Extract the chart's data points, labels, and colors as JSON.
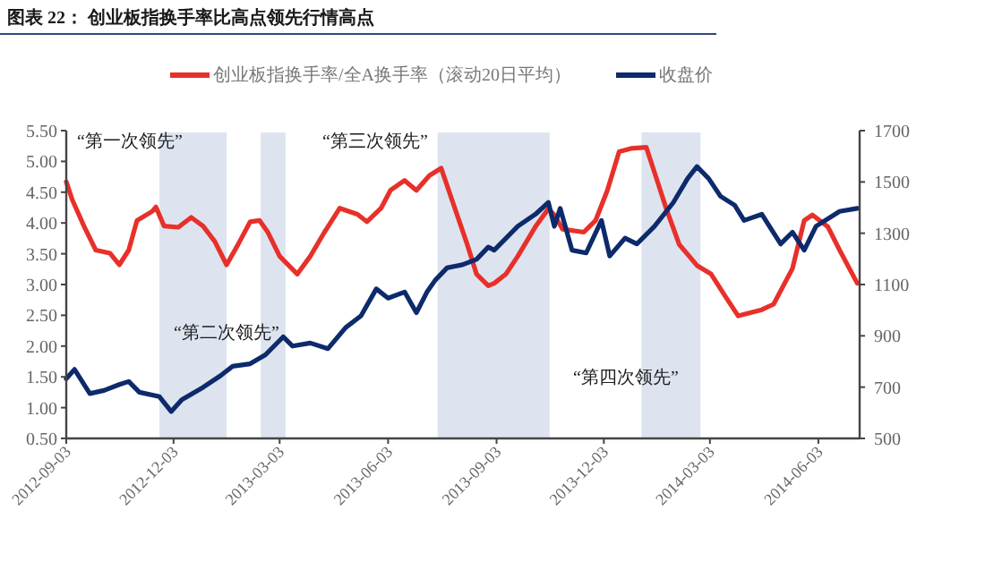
{
  "chart_data": {
    "type": "line",
    "title": "图表 22： 创业板指换手率比高点领先行情高点",
    "annotations": [
      "“第一次领先”",
      "“第二次领先”",
      "“第三次领先”",
      "“第四次领先”"
    ],
    "xlim": [
      "2012-09-03",
      "2014-07-08"
    ],
    "xticks": [
      "2012-09-03",
      "2012-12-03",
      "2013-03-03",
      "2013-06-03",
      "2013-09-03",
      "2013-12-03",
      "2014-03-03",
      "2014-06-03"
    ],
    "ylim": [
      0.5,
      5.5
    ],
    "yticks": [
      {
        "value": 0.5,
        "label": "0.50"
      },
      {
        "value": 1,
        "label": "1.00"
      },
      {
        "value": 1.5,
        "label": "1.50"
      },
      {
        "value": 2,
        "label": "2.00"
      },
      {
        "value": 2.5,
        "label": "2.50"
      },
      {
        "value": 3,
        "label": "3.00"
      },
      {
        "value": 3.5,
        "label": "3.50"
      },
      {
        "value": 4,
        "label": "4.00"
      },
      {
        "value": 4.5,
        "label": "4.50"
      },
      {
        "value": 5,
        "label": "5.00"
      },
      {
        "value": 5.5,
        "label": "5.50"
      }
    ],
    "y2lim": [
      500,
      1700
    ],
    "y2ticks": [
      500,
      700,
      900,
      1100,
      1300,
      1500,
      1700
    ],
    "bands": [
      {
        "axis": "x",
        "from": "2012-11-21",
        "to": "2013-01-17",
        "color": "#dde4ef"
      },
      {
        "axis": "x",
        "from": "2013-02-15",
        "to": "2013-03-08",
        "color": "#dde4ef"
      },
      {
        "axis": "x",
        "from": "2013-07-15",
        "to": "2013-10-18",
        "color": "#dde4ef"
      },
      {
        "axis": "x",
        "from": "2014-01-04",
        "to": "2014-02-23",
        "color": "#dde4ef"
      }
    ],
    "legend": "top",
    "grid": false,
    "marker": "none",
    "line_style": "solid",
    "series": [
      {
        "name": "创业板指换手率/全A换手率（滚动20日平均）",
        "color": "#e8302a",
        "x": [
          "2012-09-03",
          "2012-09-08",
          "2012-09-18",
          "2012-09-28",
          "2012-10-10",
          "2012-10-18",
          "2012-10-26",
          "2012-11-02",
          "2012-11-15",
          "2012-11-18",
          "2012-11-25",
          "2012-12-07",
          "2012-12-18",
          "2012-12-28",
          "2013-01-07",
          "2013-01-17",
          "2013-01-27",
          "2013-02-06",
          "2013-02-14",
          "2013-02-21",
          "2013-03-03",
          "2013-03-18",
          "2013-03-29",
          "2013-04-10",
          "2013-04-23",
          "2013-05-08",
          "2013-05-16",
          "2013-05-28",
          "2013-06-05",
          "2013-06-17",
          "2013-06-27",
          "2013-07-08",
          "2013-07-18",
          "2013-07-28",
          "2013-08-09",
          "2013-08-17",
          "2013-08-27",
          "2013-09-01",
          "2013-09-11",
          "2013-09-21",
          "2013-10-06",
          "2013-10-17",
          "2013-10-22",
          "2013-10-29",
          "2013-11-16",
          "2013-11-26",
          "2013-12-06",
          "2013-12-16",
          "2013-12-26",
          "2014-01-08",
          "2014-01-15",
          "2014-01-25",
          "2014-02-05",
          "2014-02-20",
          "2014-03-04",
          "2014-03-17",
          "2014-03-27",
          "2014-04-16",
          "2014-04-26",
          "2014-05-12",
          "2014-05-22",
          "2014-05-29",
          "2014-06-11",
          "2014-06-21",
          "2014-07-06"
        ],
        "values": [
          4.67,
          4.38,
          3.95,
          3.56,
          3.51,
          3.32,
          3.56,
          4.04,
          4.19,
          4.26,
          3.95,
          3.93,
          4.09,
          3.95,
          3.7,
          3.32,
          3.66,
          4.02,
          4.04,
          3.85,
          3.46,
          3.17,
          3.46,
          3.85,
          4.24,
          4.14,
          4.02,
          4.24,
          4.53,
          4.69,
          4.53,
          4.77,
          4.89,
          4.33,
          3.66,
          3.17,
          2.98,
          3.02,
          3.17,
          3.46,
          3.94,
          4.23,
          4.13,
          3.9,
          3.85,
          4.04,
          4.53,
          5.16,
          5.21,
          5.23,
          4.82,
          4.23,
          3.65,
          3.31,
          3.17,
          2.78,
          2.49,
          2.59,
          2.68,
          3.26,
          4.04,
          4.13,
          3.94,
          3.56,
          3.02
        ]
      },
      {
        "name": "收盘价",
        "color": "#0d2a6b",
        "axis": "y2",
        "x": [
          "2012-09-03",
          "2012-09-10",
          "2012-09-23",
          "2012-10-05",
          "2012-10-18",
          "2012-10-26",
          "2012-11-04",
          "2012-11-21",
          "2012-12-01",
          "2012-12-10",
          "2012-12-28",
          "2013-01-12",
          "2013-01-22",
          "2013-02-06",
          "2013-02-19",
          "2013-03-06",
          "2013-03-14",
          "2013-03-29",
          "2013-04-13",
          "2013-04-28",
          "2013-05-11",
          "2013-05-24",
          "2013-06-03",
          "2013-06-17",
          "2013-06-27",
          "2013-07-06",
          "2013-07-13",
          "2013-07-23",
          "2013-08-05",
          "2013-08-17",
          "2013-08-27",
          "2013-09-01",
          "2013-09-21",
          "2013-10-06",
          "2013-10-17",
          "2013-10-22",
          "2013-10-27",
          "2013-11-06",
          "2013-11-18",
          "2013-12-01",
          "2013-12-08",
          "2013-12-21",
          "2013-12-31",
          "2014-01-15",
          "2014-01-31",
          "2014-02-12",
          "2014-02-20",
          "2014-03-02",
          "2014-03-12",
          "2014-03-24",
          "2014-04-01",
          "2014-04-16",
          "2014-05-02",
          "2014-05-12",
          "2014-05-22",
          "2014-06-01",
          "2014-06-21",
          "2014-07-06"
        ],
        "values": [
          733,
          769,
          675,
          687,
          710,
          722,
          680,
          663,
          605,
          651,
          699,
          745,
          781,
          791,
          826,
          896,
          860,
          872,
          850,
          932,
          978,
          1083,
          1047,
          1071,
          990,
          1071,
          1117,
          1165,
          1177,
          1198,
          1246,
          1234,
          1327,
          1374,
          1420,
          1327,
          1397,
          1234,
          1223,
          1350,
          1211,
          1281,
          1258,
          1327,
          1420,
          1513,
          1560,
          1513,
          1444,
          1409,
          1350,
          1374,
          1258,
          1304,
          1234,
          1327,
          1385,
          1397
        ]
      }
    ]
  }
}
